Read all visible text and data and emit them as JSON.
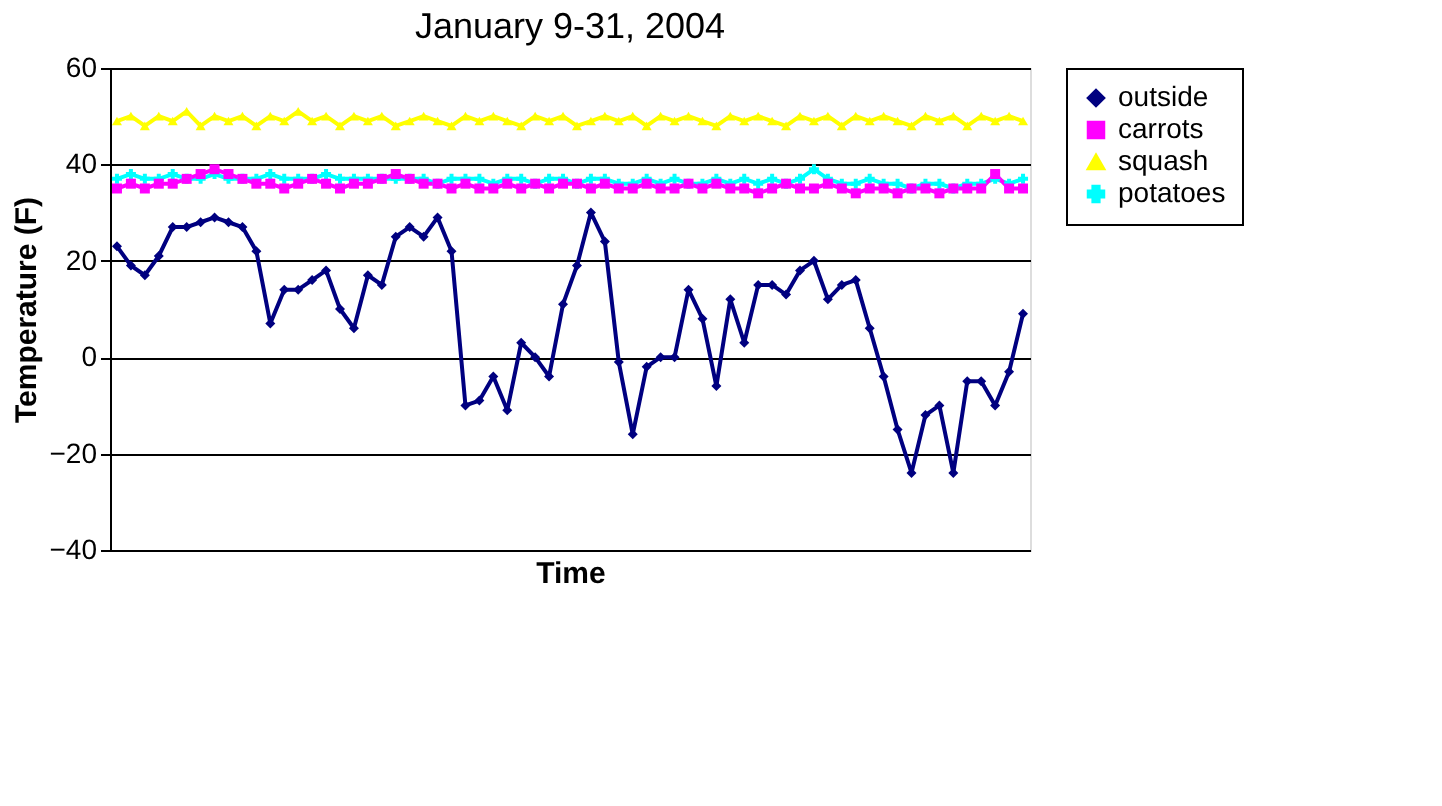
{
  "chart_data": {
    "type": "line",
    "title": "January 9-31, 2004",
    "xlabel": "Time",
    "ylabel": "Temperature (F)",
    "categories": [
      null,
      null,
      null,
      null,
      null,
      null,
      null,
      null,
      null,
      null,
      null,
      null,
      null,
      null,
      null,
      null,
      null,
      null,
      null,
      null,
      null,
      null,
      null,
      null,
      null,
      null,
      null,
      null,
      null,
      null,
      null,
      null,
      null,
      null,
      null,
      null,
      null,
      null,
      null,
      null,
      null,
      null,
      null,
      null,
      null,
      null,
      null,
      null,
      null,
      null,
      null,
      null,
      null,
      null,
      null,
      null,
      null,
      null,
      null,
      null,
      null,
      null,
      null,
      null,
      null,
      null
    ],
    "series": [
      {
        "name": "outside",
        "color": "#000080",
        "marker": "diamond",
        "values": [
          23,
          19,
          17,
          21,
          27,
          27,
          28,
          29,
          28,
          27,
          22,
          7,
          14,
          14,
          16,
          18,
          10,
          6,
          17,
          15,
          25,
          27,
          25,
          29,
          22,
          -10,
          -9,
          -4,
          -11,
          3,
          0,
          -4,
          11,
          19,
          30,
          24,
          -1,
          -16,
          -2,
          0,
          0,
          14,
          8,
          -6,
          12,
          3,
          15,
          15,
          13,
          18,
          20,
          12,
          15,
          16,
          6,
          -4,
          -15,
          -24,
          -12,
          -10,
          -24,
          -5,
          -5,
          -10,
          -3,
          9
        ]
      },
      {
        "name": "carrots",
        "color": "#ff00ff",
        "marker": "square",
        "values": [
          35,
          36,
          35,
          36,
          36,
          37,
          38,
          39,
          38,
          37,
          36,
          36,
          35,
          36,
          37,
          36,
          35,
          36,
          36,
          37,
          38,
          37,
          36,
          36,
          35,
          36,
          35,
          35,
          36,
          35,
          36,
          35,
          36,
          36,
          35,
          36,
          35,
          35,
          36,
          35,
          35,
          36,
          35,
          36,
          35,
          35,
          34,
          35,
          36,
          35,
          35,
          36,
          35,
          34,
          35,
          35,
          34,
          35,
          35,
          34,
          35,
          35,
          35,
          38,
          35,
          35
        ]
      },
      {
        "name": "squash",
        "color": "#ffff00",
        "marker": "triangle",
        "values": [
          49,
          50,
          48,
          50,
          49,
          51,
          48,
          50,
          49,
          50,
          48,
          50,
          49,
          51,
          49,
          50,
          48,
          50,
          49,
          50,
          48,
          49,
          50,
          49,
          48,
          50,
          49,
          50,
          49,
          48,
          50,
          49,
          50,
          48,
          49,
          50,
          49,
          50,
          48,
          50,
          49,
          50,
          49,
          48,
          50,
          49,
          50,
          49,
          48,
          50,
          49,
          50,
          48,
          50,
          49,
          50,
          49,
          48,
          50,
          49,
          50,
          48,
          50,
          49,
          50,
          49
        ]
      },
      {
        "name": "potatoes",
        "color": "#00ffff",
        "marker": "cross",
        "values": [
          37,
          38,
          37,
          37,
          38,
          37,
          37,
          38,
          37,
          37,
          37,
          38,
          37,
          37,
          37,
          38,
          37,
          37,
          37,
          37,
          37,
          37,
          37,
          36,
          37,
          37,
          37,
          36,
          37,
          37,
          36,
          37,
          37,
          36,
          37,
          37,
          36,
          36,
          37,
          36,
          37,
          36,
          36,
          37,
          36,
          37,
          36,
          37,
          36,
          37,
          39,
          37,
          36,
          36,
          37,
          36,
          36,
          35,
          36,
          36,
          35,
          36,
          36,
          37,
          36,
          37
        ]
      }
    ],
    "ylim": [
      -40,
      60
    ],
    "yticks": [
      -40,
      -20,
      0,
      20,
      40,
      60
    ],
    "grid": "y",
    "legend": "right",
    "line_style": "solid",
    "tick_labels": "y"
  }
}
